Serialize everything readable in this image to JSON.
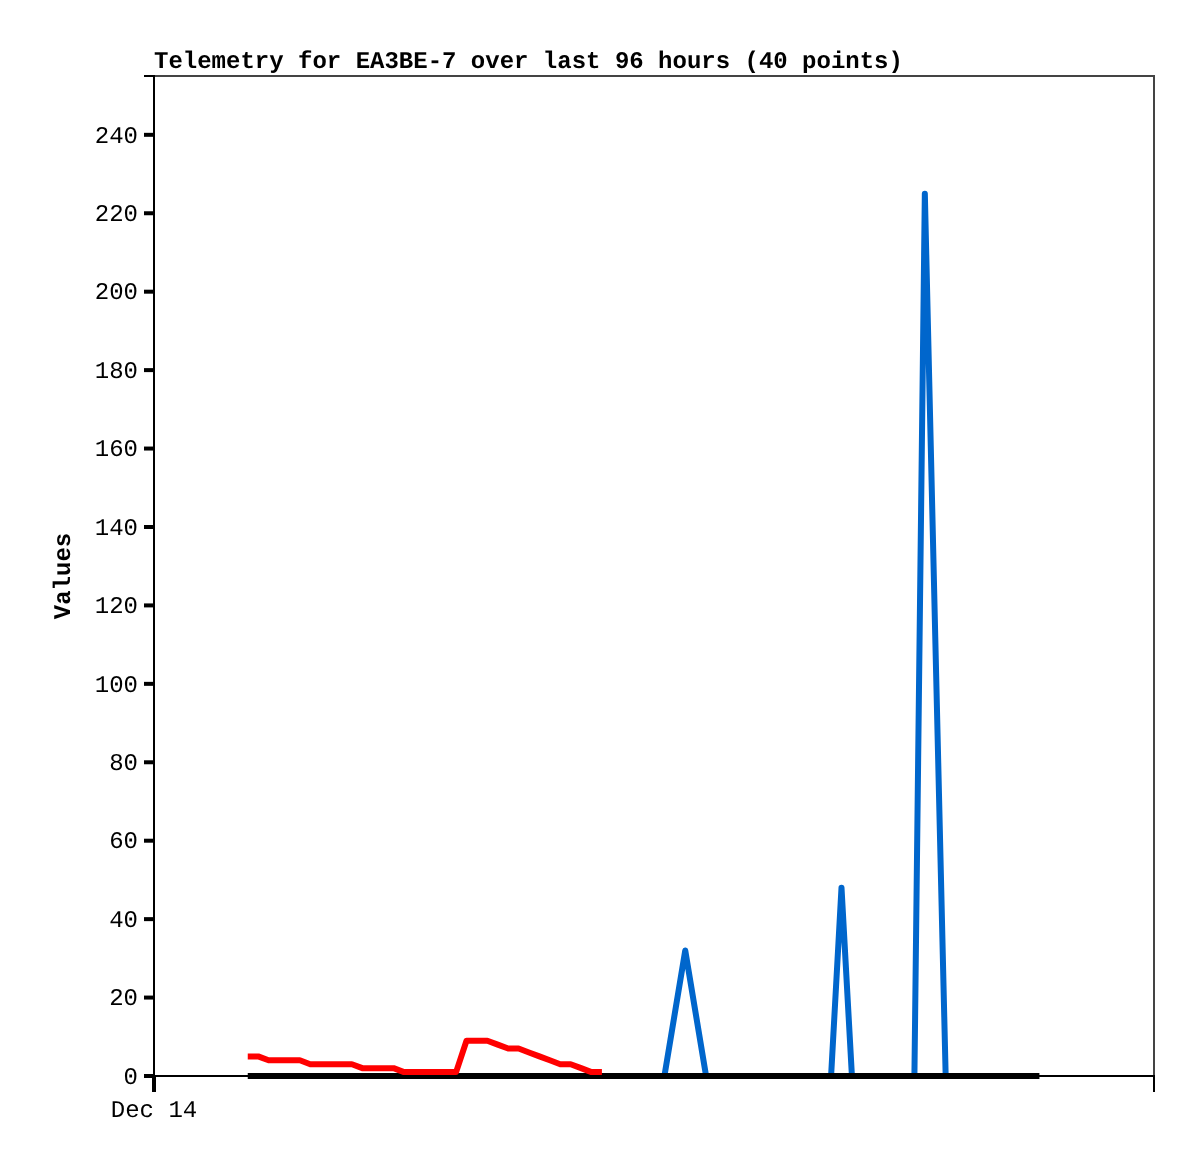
{
  "chart_data": {
    "type": "line",
    "title": "Telemetry for EA3BE-7 over last 96 hours (40 points)",
    "ylabel": "Values",
    "categories": [
      "Dec 14",
      null,
      null,
      null,
      null,
      null,
      null,
      null,
      null,
      null,
      null,
      null,
      null,
      null,
      null,
      null,
      null,
      null,
      null,
      null,
      null,
      null,
      null,
      null,
      null,
      null,
      null,
      null,
      null,
      null,
      null,
      null,
      null,
      null,
      null,
      null,
      null,
      null,
      null,
      null,
      null,
      null,
      null,
      null,
      null,
      null,
      null,
      null,
      null,
      null,
      null,
      null,
      null,
      null,
      null,
      null,
      null,
      null,
      null,
      null,
      null,
      null,
      null,
      null,
      null,
      null,
      null,
      null,
      null,
      null,
      null,
      null,
      null,
      null,
      null,
      null,
      null,
      null,
      null,
      null,
      null,
      null,
      null,
      null,
      null,
      null,
      null,
      null,
      null,
      null,
      null,
      null,
      null,
      null,
      null,
      null,
      null
    ],
    "ylim": [
      0,
      255
    ],
    "yticks": [
      0,
      20,
      40,
      60,
      80,
      100,
      120,
      140,
      160,
      180,
      200,
      220,
      240
    ],
    "grid": false,
    "marker": "none",
    "line_style": "solid",
    "series": [
      {
        "color": "#0066cc",
        "values": [
          null,
          null,
          null,
          null,
          null,
          null,
          null,
          null,
          null,
          null,
          null,
          null,
          null,
          null,
          null,
          null,
          null,
          null,
          null,
          null,
          null,
          null,
          null,
          null,
          null,
          null,
          null,
          null,
          null,
          null,
          null,
          null,
          null,
          null,
          null,
          null,
          null,
          null,
          null,
          null,
          null,
          null,
          null,
          null,
          null,
          null,
          null,
          null,
          null,
          0,
          16,
          32,
          16,
          0,
          null,
          null,
          null,
          null,
          null,
          null,
          null,
          null,
          null,
          null,
          null,
          0,
          48,
          0,
          null,
          null,
          null,
          null,
          null,
          0,
          225,
          112,
          0,
          null,
          null,
          null,
          null,
          null,
          null,
          null,
          null,
          null,
          null,
          null,
          null,
          null,
          null,
          null,
          null,
          null,
          null,
          null,
          null
        ]
      },
      {
        "color": "#000000",
        "values": [
          null,
          null,
          null,
          null,
          null,
          null,
          null,
          null,
          null,
          0,
          0,
          0,
          0,
          0,
          0,
          0,
          0,
          0,
          0,
          0,
          0,
          0,
          0,
          0,
          0,
          0,
          0,
          0,
          0,
          0,
          0,
          0,
          0,
          0,
          0,
          0,
          0,
          0,
          0,
          0,
          0,
          0,
          0,
          0,
          0,
          0,
          0,
          0,
          0,
          0,
          0,
          0,
          0,
          0,
          0,
          0,
          0,
          0,
          0,
          0,
          0,
          0,
          0,
          0,
          0,
          0,
          0,
          0,
          0,
          0,
          0,
          0,
          0,
          0,
          0,
          0,
          0,
          0,
          0,
          0,
          0,
          0,
          0,
          0,
          0,
          0,
          null,
          null,
          null,
          null,
          null,
          null,
          null,
          null,
          null,
          null,
          null
        ]
      },
      {
        "color": "#ff0000",
        "values": [
          null,
          null,
          null,
          null,
          null,
          null,
          null,
          null,
          null,
          5,
          5,
          4,
          4,
          4,
          4,
          3,
          3,
          3,
          3,
          3,
          2,
          2,
          2,
          2,
          1,
          1,
          1,
          1,
          1,
          1,
          9,
          9,
          9,
          8,
          7,
          7,
          6,
          5,
          4,
          3,
          3,
          2,
          1,
          1,
          null,
          null,
          null,
          null,
          null,
          null,
          null,
          null,
          null,
          null,
          null,
          null,
          null,
          null,
          null,
          null,
          null,
          null,
          null,
          null,
          null,
          null,
          null,
          null,
          null,
          null,
          null,
          null,
          null,
          null,
          null,
          null,
          null,
          null,
          null,
          null,
          null,
          null,
          null,
          null,
          null,
          null,
          null,
          null,
          null,
          null,
          null,
          null,
          null,
          null,
          null,
          null,
          null
        ]
      }
    ]
  }
}
